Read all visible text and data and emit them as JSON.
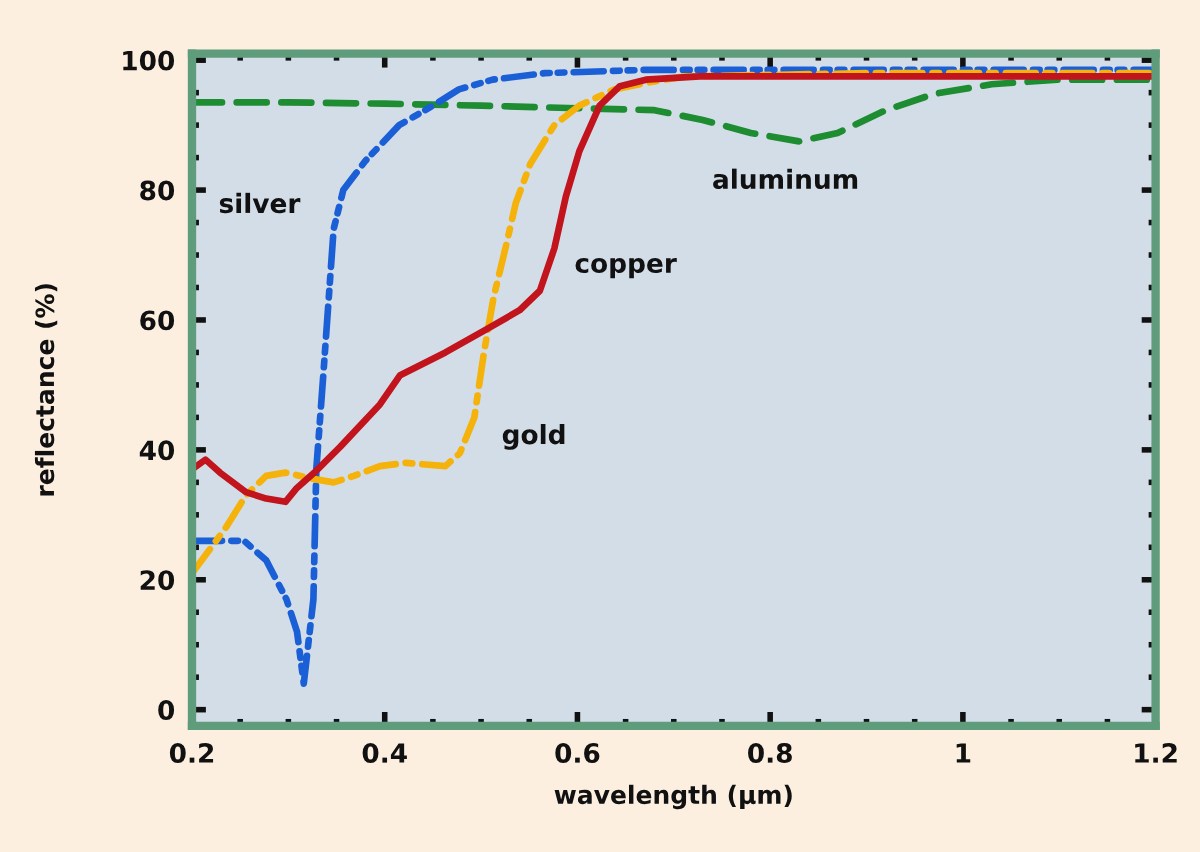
{
  "chart_data": {
    "type": "line",
    "xlabel": "wavelength (µm)",
    "ylabel": "reflectance (%)",
    "xlim": [
      0.2,
      1.2
    ],
    "ylim": [
      -2.5,
      101
    ],
    "xticks": [
      0.2,
      {
        "value": 0.25,
        "label": null
      },
      {
        "value": 0.3,
        "label": null
      },
      {
        "value": 0.35,
        "label": null
      },
      0.4,
      {
        "value": 0.45,
        "label": null
      },
      {
        "value": 0.5,
        "label": null
      },
      {
        "value": 0.55,
        "label": null
      },
      0.6,
      {
        "value": 0.65,
        "label": null
      },
      {
        "value": 0.7,
        "label": null
      },
      {
        "value": 0.75,
        "label": null
      },
      0.8,
      {
        "value": 0.85,
        "label": null
      },
      {
        "value": 0.9,
        "label": null
      },
      {
        "value": 0.95,
        "label": null
      },
      1,
      {
        "value": 1.05,
        "label": null
      },
      {
        "value": 1.1,
        "label": null
      },
      {
        "value": 1.15,
        "label": null
      },
      1.2
    ],
    "yticks": [
      0,
      {
        "value": 5,
        "label": null
      },
      {
        "value": 10,
        "label": null
      },
      {
        "value": 15,
        "label": null
      },
      20,
      {
        "value": 25,
        "label": null
      },
      {
        "value": 30,
        "label": null
      },
      {
        "value": 35,
        "label": null
      },
      40,
      {
        "value": 45,
        "label": null
      },
      {
        "value": 50,
        "label": null
      },
      {
        "value": 55,
        "label": null
      },
      60,
      {
        "value": 65,
        "label": null
      },
      {
        "value": 70,
        "label": null
      },
      {
        "value": 75,
        "label": null
      },
      80,
      {
        "value": 85,
        "label": null
      },
      {
        "value": 90,
        "label": null
      },
      {
        "value": 95,
        "label": null
      },
      100
    ],
    "series": [
      {
        "name": "aluminum",
        "color": "#1e8c30",
        "line_style": "dashed",
        "x": [
          0.2,
          0.3,
          0.4,
          0.5,
          0.6,
          0.68,
          0.73,
          0.78,
          0.83,
          0.87,
          0.92,
          0.97,
          1.03,
          1.1,
          1.2
        ],
        "values": [
          93.5,
          93.5,
          93.3,
          93,
          92.6,
          92.3,
          90.8,
          88.8,
          87.5,
          88.8,
          92.3,
          94.8,
          96.3,
          97,
          97
        ]
      },
      {
        "name": "silver",
        "color": "#1a5fd6",
        "line_style": "dashdotdot",
        "x": [
          0.2,
          0.254,
          0.277,
          0.298,
          0.309,
          0.316,
          0.326,
          0.329,
          0.336,
          0.347,
          0.357,
          0.38,
          0.415,
          0.45,
          0.477,
          0.512,
          0.566,
          0.669,
          0.726,
          0.9,
          1.2
        ],
        "values": [
          26,
          26,
          23,
          17,
          12,
          4,
          17,
          37,
          51,
          74,
          80,
          84.5,
          90,
          93,
          95.5,
          97,
          98,
          98.5,
          98.5,
          98.5,
          98.5
        ]
      },
      {
        "name": "gold",
        "color": "#f5b20a",
        "line_style": "dashdot",
        "x": [
          0.2,
          0.235,
          0.256,
          0.277,
          0.297,
          0.327,
          0.347,
          0.368,
          0.395,
          0.422,
          0.463,
          0.478,
          0.493,
          0.503,
          0.513,
          0.526,
          0.536,
          0.551,
          0.576,
          0.602,
          0.638,
          0.671,
          0.712,
          0.9,
          1.2
        ],
        "values": [
          21,
          28,
          33,
          36,
          36.5,
          35.5,
          35,
          36,
          37.5,
          38,
          37.5,
          39.5,
          45,
          55,
          63.5,
          71.5,
          78,
          84,
          90,
          93,
          95.5,
          96.5,
          97.5,
          98,
          98
        ]
      },
      {
        "name": "copper",
        "color": "#c2141c",
        "line_style": "solid",
        "x": [
          0.2,
          0.214,
          0.229,
          0.256,
          0.277,
          0.297,
          0.308,
          0.327,
          0.354,
          0.395,
          0.416,
          0.463,
          0.505,
          0.54,
          0.561,
          0.576,
          0.588,
          0.602,
          0.623,
          0.644,
          0.671,
          0.727,
          0.9,
          1.2
        ],
        "values": [
          37,
          38.5,
          36.5,
          33.5,
          32.5,
          32,
          34,
          36.5,
          40.5,
          47,
          51.5,
          55,
          58.5,
          61.5,
          64.5,
          71,
          79,
          86,
          93,
          96,
          97,
          97.5,
          97.5,
          97.5
        ]
      }
    ]
  }
}
